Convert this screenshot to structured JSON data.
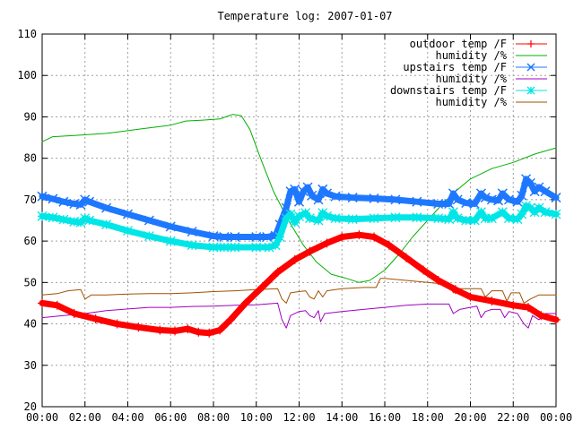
{
  "chart_data": {
    "type": "line",
    "title": "Temperature log: 2007-01-07",
    "xlabel": "",
    "ylabel": "",
    "x_unit": "hours",
    "xlim": [
      0,
      24
    ],
    "ylim": [
      20,
      110
    ],
    "x_ticks": [
      {
        "value": 0,
        "label": "00:00"
      },
      {
        "value": 2,
        "label": "02:00"
      },
      {
        "value": 4,
        "label": "04:00"
      },
      {
        "value": 6,
        "label": "06:00"
      },
      {
        "value": 8,
        "label": "08:00"
      },
      {
        "value": 10,
        "label": "10:00"
      },
      {
        "value": 12,
        "label": "12:00"
      },
      {
        "value": 14,
        "label": "14:00"
      },
      {
        "value": 16,
        "label": "16:00"
      },
      {
        "value": 18,
        "label": "18:00"
      },
      {
        "value": 20,
        "label": "20:00"
      },
      {
        "value": 22,
        "label": "22:00"
      },
      {
        "value": 24,
        "label": "00:00"
      }
    ],
    "y_ticks": [
      20,
      30,
      40,
      50,
      60,
      70,
      80,
      90,
      100,
      110
    ],
    "grid": true,
    "legend_position": "top-right",
    "series": [
      {
        "name": "outdoor temp /F",
        "color": "#ff0000",
        "marker": "plus",
        "width": 7,
        "points": [
          [
            0,
            45
          ],
          [
            0.7,
            44.5
          ],
          [
            1.5,
            42.5
          ],
          [
            2.5,
            41.2
          ],
          [
            3.5,
            40
          ],
          [
            4.5,
            39.2
          ],
          [
            5.5,
            38.5
          ],
          [
            6.2,
            38.3
          ],
          [
            6.8,
            38.8
          ],
          [
            7.3,
            38
          ],
          [
            7.8,
            37.8
          ],
          [
            8.3,
            38.5
          ],
          [
            8.8,
            41
          ],
          [
            9.5,
            45
          ],
          [
            10.3,
            49
          ],
          [
            11,
            52.5
          ],
          [
            11.8,
            55.5
          ],
          [
            12.5,
            57.5
          ],
          [
            13.3,
            59.5
          ],
          [
            14,
            61
          ],
          [
            14.8,
            61.5
          ],
          [
            15.5,
            61
          ],
          [
            16.2,
            59
          ],
          [
            17,
            56
          ],
          [
            17.8,
            53
          ],
          [
            18.5,
            50.5
          ],
          [
            19.3,
            48.3
          ],
          [
            20,
            46.5
          ],
          [
            21,
            45.5
          ],
          [
            22,
            44.5
          ],
          [
            22.7,
            44
          ],
          [
            23.3,
            42
          ],
          [
            24,
            41
          ]
        ]
      },
      {
        "name": "humidity /%",
        "color": "#00b000",
        "marker": "",
        "width": 1,
        "points": [
          [
            0,
            84
          ],
          [
            0.5,
            85.2
          ],
          [
            1.5,
            85.5
          ],
          [
            3,
            86
          ],
          [
            4.5,
            87
          ],
          [
            6,
            88
          ],
          [
            6.7,
            89
          ],
          [
            7.5,
            89.2
          ],
          [
            8.3,
            89.5
          ],
          [
            8.9,
            90.6
          ],
          [
            9.3,
            90.3
          ],
          [
            9.7,
            87
          ],
          [
            10.2,
            80
          ],
          [
            10.8,
            72
          ],
          [
            11.5,
            65
          ],
          [
            12.2,
            59
          ],
          [
            12.8,
            55
          ],
          [
            13.5,
            52
          ],
          [
            14.2,
            51
          ],
          [
            14.8,
            50
          ],
          [
            15.3,
            50.5
          ],
          [
            16,
            53
          ],
          [
            16.7,
            57
          ],
          [
            17.3,
            61
          ],
          [
            18,
            65
          ],
          [
            18.7,
            69
          ],
          [
            19.3,
            72
          ],
          [
            20,
            75
          ],
          [
            21,
            77.5
          ],
          [
            22,
            79
          ],
          [
            23,
            81
          ],
          [
            24,
            82.5
          ]
        ]
      },
      {
        "name": "upstairs temp /F",
        "color": "#1e78ff",
        "marker": "x",
        "width": 7,
        "points": [
          [
            0,
            70.8
          ],
          [
            0.5,
            70.2
          ],
          [
            1,
            69.5
          ],
          [
            1.5,
            69
          ],
          [
            1.8,
            68.8
          ],
          [
            2,
            70
          ],
          [
            2.2,
            69.5
          ],
          [
            3,
            68
          ],
          [
            4,
            66.5
          ],
          [
            5,
            65
          ],
          [
            6,
            63.5
          ],
          [
            7,
            62.3
          ],
          [
            8,
            61.2
          ],
          [
            8.5,
            61
          ],
          [
            9,
            61
          ],
          [
            10,
            61
          ],
          [
            10.5,
            61
          ],
          [
            10.9,
            61.3
          ],
          [
            11.1,
            64
          ],
          [
            11.4,
            68
          ],
          [
            11.6,
            72
          ],
          [
            11.8,
            72.5
          ],
          [
            12,
            69.5
          ],
          [
            12.2,
            72
          ],
          [
            12.4,
            73
          ],
          [
            12.6,
            71
          ],
          [
            12.9,
            70
          ],
          [
            13.1,
            72.5
          ],
          [
            13.3,
            71.5
          ],
          [
            13.7,
            70.8
          ],
          [
            14.5,
            70.5
          ],
          [
            15.5,
            70.3
          ],
          [
            16.5,
            70
          ],
          [
            17.5,
            69.5
          ],
          [
            18.5,
            69
          ],
          [
            19,
            69
          ],
          [
            19.2,
            71.5
          ],
          [
            19.4,
            70
          ],
          [
            19.8,
            69.2
          ],
          [
            20.2,
            69
          ],
          [
            20.5,
            71.5
          ],
          [
            20.7,
            70.5
          ],
          [
            21,
            70
          ],
          [
            21.3,
            69.8
          ],
          [
            21.5,
            71.5
          ],
          [
            21.8,
            70
          ],
          [
            22.2,
            69.5
          ],
          [
            22.4,
            71
          ],
          [
            22.6,
            75
          ],
          [
            22.8,
            74
          ],
          [
            23,
            72
          ],
          [
            23.2,
            73
          ],
          [
            23.5,
            72
          ],
          [
            24,
            70.5
          ]
        ]
      },
      {
        "name": "humidity /%",
        "color": "#a000c0",
        "marker": "",
        "width": 1,
        "points": [
          [
            0,
            41.5
          ],
          [
            1,
            42
          ],
          [
            2,
            42.5
          ],
          [
            3,
            43.2
          ],
          [
            4,
            43.6
          ],
          [
            5,
            44
          ],
          [
            6,
            44
          ],
          [
            7,
            44.2
          ],
          [
            8,
            44.3
          ],
          [
            9,
            44.5
          ],
          [
            10,
            44.6
          ],
          [
            11,
            45
          ],
          [
            11.2,
            41
          ],
          [
            11.4,
            39
          ],
          [
            11.6,
            42
          ],
          [
            12,
            43
          ],
          [
            12.3,
            43.2
          ],
          [
            12.5,
            42
          ],
          [
            12.7,
            41.5
          ],
          [
            12.9,
            43.2
          ],
          [
            13,
            40.5
          ],
          [
            13.2,
            42.5
          ],
          [
            14,
            43
          ],
          [
            15,
            43.5
          ],
          [
            16,
            44
          ],
          [
            17,
            44.5
          ],
          [
            18,
            44.8
          ],
          [
            19,
            44.8
          ],
          [
            19.2,
            42.5
          ],
          [
            19.5,
            43.5
          ],
          [
            20,
            44
          ],
          [
            20.3,
            44.3
          ],
          [
            20.5,
            41.5
          ],
          [
            20.7,
            43
          ],
          [
            21,
            43.5
          ],
          [
            21.4,
            43.5
          ],
          [
            21.6,
            41.5
          ],
          [
            21.8,
            43
          ],
          [
            22.2,
            42.5
          ],
          [
            22.5,
            40
          ],
          [
            22.7,
            39
          ],
          [
            22.9,
            42
          ],
          [
            23.2,
            41
          ],
          [
            23.5,
            42.5
          ],
          [
            24,
            42.5
          ]
        ]
      },
      {
        "name": "downstairs temp /F",
        "color": "#00e6e6",
        "marker": "star",
        "width": 7,
        "points": [
          [
            0,
            66
          ],
          [
            0.5,
            65.7
          ],
          [
            1,
            65.2
          ],
          [
            1.5,
            64.7
          ],
          [
            1.8,
            64.5
          ],
          [
            2,
            65.5
          ],
          [
            2.2,
            65
          ],
          [
            3,
            64
          ],
          [
            4,
            62.5
          ],
          [
            5,
            61.2
          ],
          [
            6,
            60
          ],
          [
            7,
            59
          ],
          [
            8,
            58.5
          ],
          [
            8.5,
            58.5
          ],
          [
            9,
            58.5
          ],
          [
            10,
            58.5
          ],
          [
            10.6,
            58.5
          ],
          [
            10.9,
            59
          ],
          [
            11.1,
            61
          ],
          [
            11.4,
            65.5
          ],
          [
            11.6,
            66.5
          ],
          [
            11.8,
            64.5
          ],
          [
            12,
            66
          ],
          [
            12.3,
            66.8
          ],
          [
            12.5,
            65.5
          ],
          [
            12.9,
            65
          ],
          [
            13.1,
            66.8
          ],
          [
            13.3,
            66
          ],
          [
            13.7,
            65.5
          ],
          [
            14.5,
            65.3
          ],
          [
            15.5,
            65.5
          ],
          [
            16.5,
            65.7
          ],
          [
            17.5,
            65.7
          ],
          [
            18.5,
            65.5
          ],
          [
            19,
            65.3
          ],
          [
            19.2,
            67
          ],
          [
            19.4,
            65.5
          ],
          [
            19.8,
            65
          ],
          [
            20.2,
            65
          ],
          [
            20.5,
            67
          ],
          [
            20.7,
            65.5
          ],
          [
            21,
            65.5
          ],
          [
            21.5,
            67
          ],
          [
            21.8,
            65.5
          ],
          [
            22.2,
            65.3
          ],
          [
            22.4,
            66.5
          ],
          [
            22.6,
            68.5
          ],
          [
            22.8,
            68
          ],
          [
            23,
            67
          ],
          [
            23.2,
            68
          ],
          [
            23.5,
            67
          ],
          [
            24,
            66.5
          ]
        ]
      },
      {
        "name": "humidity /%",
        "color": "#a05000",
        "marker": "",
        "width": 1,
        "points": [
          [
            0,
            47
          ],
          [
            0.7,
            47.3
          ],
          [
            1.2,
            48
          ],
          [
            1.8,
            48.3
          ],
          [
            2,
            46
          ],
          [
            2.3,
            47
          ],
          [
            3,
            47
          ],
          [
            4,
            47.2
          ],
          [
            5,
            47.3
          ],
          [
            6,
            47.3
          ],
          [
            7,
            47.5
          ],
          [
            8,
            47.8
          ],
          [
            9,
            48
          ],
          [
            10,
            48.3
          ],
          [
            11,
            48.5
          ],
          [
            11.2,
            46
          ],
          [
            11.4,
            45
          ],
          [
            11.6,
            47.5
          ],
          [
            12,
            47.8
          ],
          [
            12.3,
            48
          ],
          [
            12.5,
            46.5
          ],
          [
            12.7,
            46
          ],
          [
            12.9,
            48
          ],
          [
            13.1,
            46.5
          ],
          [
            13.3,
            48
          ],
          [
            14,
            48.5
          ],
          [
            15,
            48.8
          ],
          [
            15.6,
            48.8
          ],
          [
            15.8,
            51
          ],
          [
            16,
            51
          ],
          [
            17,
            50.5
          ],
          [
            18,
            50
          ],
          [
            19,
            49.5
          ],
          [
            19.2,
            47.5
          ],
          [
            19.5,
            48.5
          ],
          [
            20,
            48.5
          ],
          [
            20.5,
            48.5
          ],
          [
            20.7,
            46.5
          ],
          [
            21,
            48
          ],
          [
            21.5,
            48
          ],
          [
            21.7,
            45.5
          ],
          [
            21.9,
            47.5
          ],
          [
            22.3,
            47.5
          ],
          [
            22.5,
            45
          ],
          [
            22.8,
            46
          ],
          [
            23.2,
            47
          ],
          [
            23.5,
            47
          ],
          [
            24,
            47
          ]
        ]
      }
    ]
  }
}
